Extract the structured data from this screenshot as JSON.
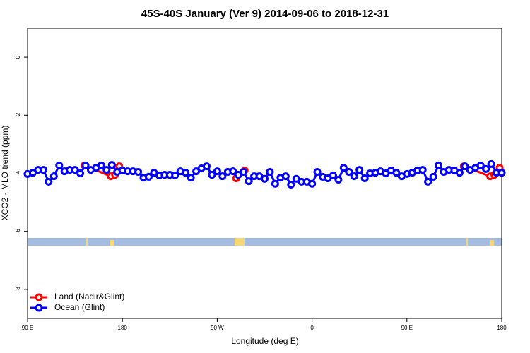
{
  "chart_data": {
    "type": "line",
    "title": "45S-40S January (Ver 9)   2014-09-06 to 2018-12-31",
    "x_label": "Longitude (deg E)",
    "y_label": "XCO2 - MLO trend (ppm)",
    "xlim": [
      90,
      540
    ],
    "ylim": [
      -9,
      1
    ],
    "xticks": [
      {
        "value": 90,
        "label": "90 E"
      },
      {
        "value": 180,
        "label": "180"
      },
      {
        "value": 270,
        "label": "90 W"
      },
      {
        "value": 360,
        "label": "0"
      },
      {
        "value": 450,
        "label": "90 E"
      },
      {
        "value": 540,
        "label": "180"
      }
    ],
    "yticks": [
      0,
      -2,
      -4,
      -6,
      -8
    ],
    "legend": "bottom-left",
    "series": [
      {
        "name": "Land (Nadir&Glint)",
        "color": "#ff0000",
        "x": [
          144,
          169,
          173,
          177,
          180,
          288,
          296,
          300,
          504,
          529,
          533,
          538
        ],
        "values": [
          -3.73,
          -4.1,
          -4.05,
          -3.76,
          null,
          -4.17,
          -3.9,
          null,
          -3.76,
          -4.1,
          -4.05,
          -3.81
        ]
      },
      {
        "name": "Ocean (Glint)",
        "color": "#0000ff",
        "x": [
          90,
          95,
          100,
          105,
          110,
          115,
          120,
          125,
          130,
          135,
          140,
          145,
          150,
          155,
          160,
          165,
          170,
          175,
          180,
          185,
          190,
          195,
          200,
          205,
          210,
          215,
          220,
          225,
          230,
          235,
          240,
          245,
          250,
          255,
          260,
          265,
          270,
          275,
          280,
          285,
          290,
          295,
          300,
          305,
          310,
          315,
          320,
          325,
          330,
          335,
          340,
          345,
          350,
          355,
          360,
          365,
          370,
          375,
          380,
          385,
          390,
          395,
          400,
          405,
          410,
          415,
          420,
          425,
          430,
          435,
          440,
          445,
          450,
          455,
          460,
          465,
          470,
          475,
          480,
          485,
          490,
          495,
          500,
          505,
          510,
          515,
          520,
          525,
          530,
          535,
          540
        ],
        "values": [
          -4.02,
          -3.98,
          -3.88,
          -3.88,
          -4.29,
          -4.1,
          -3.73,
          -3.93,
          -3.88,
          -3.88,
          -4.0,
          -3.73,
          -3.88,
          -3.81,
          -3.73,
          -3.88,
          -3.71,
          -3.95,
          -3.9,
          -3.93,
          -3.93,
          -3.95,
          -4.15,
          -4.12,
          -3.98,
          -4.07,
          -4.05,
          -4.05,
          -4.07,
          -3.93,
          -3.98,
          -4.15,
          -3.93,
          -3.83,
          -3.76,
          -4.05,
          -3.93,
          -4.1,
          -3.95,
          -3.93,
          -4.05,
          -3.95,
          -4.27,
          -4.1,
          -4.1,
          -4.19,
          -3.95,
          -4.36,
          -4.15,
          -4.1,
          -4.39,
          -4.19,
          -4.29,
          -4.29,
          -4.36,
          -3.95,
          -4.12,
          -4.17,
          -4.07,
          -4.22,
          -3.81,
          -3.95,
          -4.1,
          -3.88,
          -4.17,
          -4.0,
          -3.98,
          -3.93,
          -4.0,
          -3.9,
          -3.98,
          -4.1,
          -4.02,
          -3.98,
          -3.9,
          -3.88,
          -4.29,
          -4.12,
          -3.73,
          -3.95,
          -3.88,
          -3.9,
          -3.98,
          -3.76,
          -3.88,
          -3.81,
          -3.73,
          -3.85,
          -3.68,
          -3.98,
          -3.98
        ]
      }
    ]
  }
}
